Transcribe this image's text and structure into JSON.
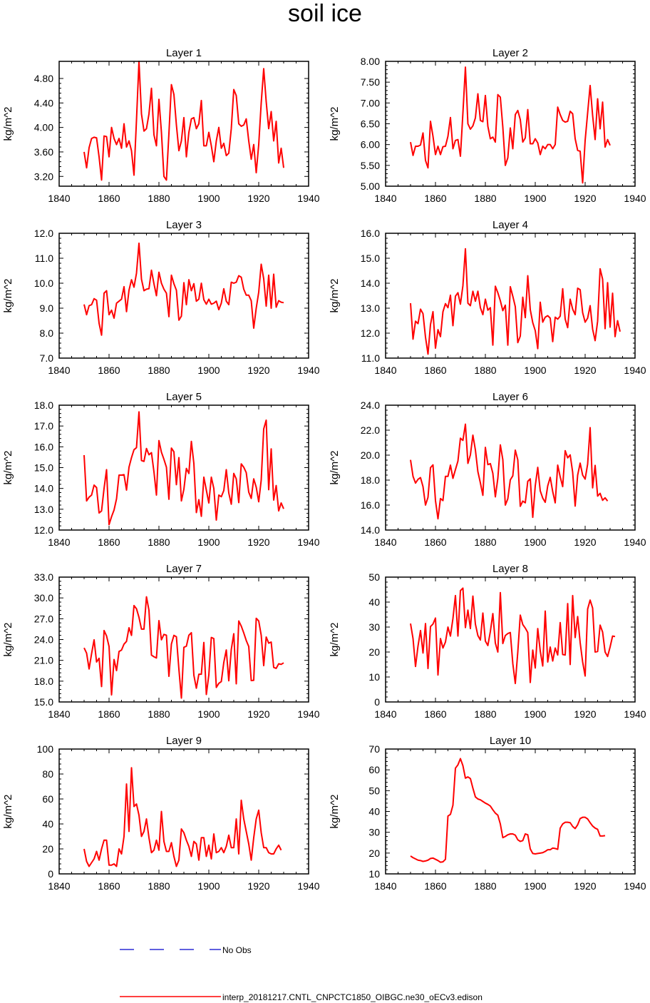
{
  "figure": {
    "title": "soil ice",
    "line_color": "#ff0000",
    "noobs_color": "#0000cc"
  },
  "legend": {
    "no_obs_label": "No Obs",
    "model_label": "interp_20181217.CNTL_CNPCTC1850_OIBGC.ne30_oECv3.edison"
  },
  "chart_data": [
    {
      "type": "line",
      "title": "Layer 1",
      "ylabel": "kg/m^2",
      "xlim": [
        1840,
        1940
      ],
      "xticks": [
        1840,
        1860,
        1880,
        1900,
        1920,
        1940
      ],
      "ylim": [
        3.04,
        5.08
      ],
      "yticks": [
        3.2,
        3.6,
        4.0,
        4.4,
        4.8
      ],
      "ytick_labels": [
        "3.20",
        "3.60",
        "4.00",
        "4.40",
        "4.80"
      ],
      "x_start": 1850,
      "values": [
        3.6,
        3.34,
        3.67,
        3.82,
        3.84,
        3.83,
        3.52,
        3.14,
        3.86,
        3.85,
        3.52,
        4.0,
        3.82,
        3.72,
        3.82,
        3.66,
        4.06,
        3.68,
        3.78,
        3.62,
        3.22,
        4.12,
        5.08,
        4.22,
        3.94,
        3.98,
        4.22,
        4.64,
        3.88,
        3.7,
        4.46,
        3.92,
        3.2,
        3.14,
        3.9,
        4.7,
        4.54,
        4.04,
        3.62,
        3.78,
        4.16,
        3.52,
        3.92,
        4.14,
        4.16,
        3.98,
        4.06,
        4.44,
        3.7,
        3.7,
        3.92,
        3.7,
        3.44,
        3.78,
        4.0,
        3.66,
        3.74,
        3.54,
        3.58,
        3.98,
        4.62,
        4.52,
        4.06,
        4.02,
        4.04,
        4.14,
        3.78,
        3.48,
        3.72,
        3.26,
        3.72,
        4.4,
        4.96,
        4.42,
        3.98,
        4.26,
        3.78,
        4.1,
        3.42,
        3.66,
        3.34
      ]
    },
    {
      "type": "line",
      "title": "Layer 2",
      "ylabel": "kg/m^2",
      "xlim": [
        1840,
        1940
      ],
      "xticks": [
        1840,
        1860,
        1880,
        1900,
        1920,
        1940
      ],
      "ylim": [
        5.0,
        8.0
      ],
      "yticks": [
        5.0,
        5.5,
        6.0,
        6.5,
        7.0,
        7.5,
        8.0
      ],
      "ytick_labels": [
        "5.00",
        "5.50",
        "6.00",
        "6.50",
        "7.00",
        "7.50",
        "8.00"
      ],
      "x_start": 1850,
      "values": [
        6.06,
        5.74,
        5.96,
        5.96,
        5.99,
        6.28,
        5.62,
        5.44,
        6.56,
        6.2,
        5.76,
        5.96,
        5.76,
        5.95,
        5.96,
        6.2,
        6.65,
        5.9,
        6.1,
        6.12,
        5.72,
        6.76,
        7.86,
        6.5,
        6.37,
        6.45,
        6.64,
        7.22,
        6.58,
        6.55,
        7.18,
        6.44,
        6.14,
        6.18,
        6.06,
        7.2,
        7.14,
        6.42,
        5.5,
        5.68,
        6.4,
        5.9,
        6.72,
        6.82,
        6.6,
        6.06,
        6.16,
        6.84,
        6.02,
        6.02,
        6.14,
        6.04,
        5.76,
        5.96,
        5.9,
        6.0,
        6.0,
        5.9,
        6.0,
        6.9,
        6.72,
        6.58,
        6.54,
        6.56,
        6.8,
        6.74,
        6.14,
        5.86,
        5.84,
        5.08,
        6.1,
        6.76,
        7.42,
        6.7,
        6.12,
        7.1,
        6.38,
        7.02,
        5.94,
        6.12,
        5.98
      ]
    },
    {
      "type": "line",
      "title": "Layer 3",
      "ylabel": "kg/m^2",
      "xlim": [
        1840,
        1940
      ],
      "xticks": [
        1840,
        1860,
        1880,
        1900,
        1920,
        1940
      ],
      "ylim": [
        7.0,
        12.0
      ],
      "yticks": [
        7,
        8,
        9,
        10,
        11,
        12
      ],
      "ytick_labels": [
        "7.0",
        "8.0",
        "9.0",
        "10.0",
        "11.0",
        "12.0"
      ],
      "x_start": 1850,
      "values": [
        9.15,
        8.74,
        9.1,
        9.14,
        9.38,
        9.32,
        8.4,
        7.92,
        9.6,
        9.7,
        8.74,
        8.92,
        8.6,
        9.2,
        9.28,
        9.36,
        9.86,
        8.86,
        9.72,
        10.14,
        9.84,
        10.4,
        11.6,
        10.16,
        9.7,
        9.76,
        9.78,
        10.52,
        9.98,
        9.5,
        10.44,
        10.0,
        9.76,
        9.6,
        8.66,
        10.32,
        9.98,
        9.72,
        8.52,
        8.68,
        10.02,
        9.14,
        10.14,
        9.7,
        9.98,
        9.28,
        9.36,
        10.0,
        9.34,
        9.16,
        9.36,
        9.16,
        9.2,
        9.28,
        8.94,
        9.2,
        9.78,
        9.28,
        9.14,
        10.04,
        10.0,
        10.04,
        10.3,
        10.24,
        9.76,
        9.52,
        9.52,
        9.3,
        8.2,
        9.0,
        9.64,
        10.76,
        10.18,
        9.08,
        10.32,
        9.0,
        10.36,
        9.04,
        9.3,
        9.24,
        9.22
      ]
    },
    {
      "type": "line",
      "title": "Layer 4",
      "ylabel": "kg/m^2",
      "xlim": [
        1840,
        1940
      ],
      "xticks": [
        1840,
        1860,
        1880,
        1900,
        1920,
        1940
      ],
      "ylim": [
        11.0,
        16.0
      ],
      "yticks": [
        11,
        12,
        13,
        14,
        15,
        16
      ],
      "ytick_labels": [
        "11.0",
        "12.0",
        "13.0",
        "14.0",
        "15.0",
        "16.0"
      ],
      "x_start": 1850,
      "values": [
        13.2,
        11.76,
        12.48,
        12.38,
        12.96,
        12.78,
        11.84,
        11.16,
        12.34,
        12.86,
        11.4,
        12.14,
        11.86,
        12.86,
        13.18,
        13.02,
        13.52,
        12.3,
        13.48,
        13.62,
        13.16,
        13.9,
        15.38,
        13.2,
        13.1,
        13.68,
        13.28,
        13.68,
        13.02,
        12.74,
        13.36,
        12.92,
        13.02,
        11.52,
        13.88,
        13.62,
        13.3,
        12.9,
        13.12,
        11.52,
        13.86,
        13.48,
        13.06,
        11.62,
        11.88,
        13.44,
        12.62,
        14.3,
        12.94,
        12.42,
        12.1,
        11.38,
        13.24,
        12.44,
        12.64,
        12.7,
        12.6,
        11.66,
        12.64,
        12.56,
        12.68,
        13.78,
        12.56,
        12.22,
        13.36,
        12.96,
        12.74,
        13.8,
        13.74,
        12.82,
        12.44,
        12.6,
        13.1,
        12.16,
        11.7,
        12.48,
        14.58,
        14.16,
        12.18,
        14.02,
        12.24,
        13.6,
        11.86,
        12.5,
        12.06
      ]
    },
    {
      "type": "line",
      "title": "Layer 5",
      "ylabel": "kg/m^2",
      "xlim": [
        1840,
        1940
      ],
      "xticks": [
        1840,
        1860,
        1880,
        1900,
        1920,
        1940
      ],
      "ylim": [
        12.0,
        18.0
      ],
      "yticks": [
        12,
        13,
        14,
        15,
        16,
        17,
        18
      ],
      "ytick_labels": [
        "12.0",
        "13.0",
        "14.0",
        "15.0",
        "16.0",
        "17.0",
        "18.0"
      ],
      "x_start": 1850,
      "values": [
        15.6,
        13.4,
        13.58,
        13.68,
        14.16,
        14.04,
        12.82,
        12.92,
        14.0,
        14.9,
        12.26,
        12.64,
        12.96,
        13.5,
        14.64,
        14.64,
        14.66,
        13.92,
        15.02,
        15.48,
        15.86,
        15.96,
        17.68,
        15.34,
        15.3,
        15.92,
        15.62,
        15.72,
        14.8,
        13.68,
        16.3,
        15.74,
        15.4,
        15.02,
        13.48,
        15.94,
        15.76,
        14.18,
        15.48,
        13.4,
        13.96,
        14.96,
        14.72,
        16.26,
        15.2,
        12.84,
        13.46,
        12.66,
        14.54,
        13.92,
        13.3,
        14.54,
        14.0,
        12.48,
        13.68,
        13.6,
        13.9,
        14.9,
        13.78,
        13.24,
        14.72,
        14.46,
        13.32,
        15.18,
        15.02,
        14.76,
        13.82,
        13.52,
        14.46,
        14.06,
        13.36,
        14.4,
        16.86,
        17.28,
        13.94,
        15.9,
        13.44,
        14.14,
        12.92,
        13.3,
        13.02
      ]
    },
    {
      "type": "line",
      "title": "Layer 6",
      "ylabel": "kg/m^2",
      "xlim": [
        1840,
        1940
      ],
      "xticks": [
        1840,
        1860,
        1880,
        1900,
        1920,
        1940
      ],
      "ylim": [
        14.0,
        24.0
      ],
      "yticks": [
        14,
        16,
        18,
        20,
        22,
        24
      ],
      "ytick_labels": [
        "14.0",
        "16.0",
        "18.0",
        "20.0",
        "22.0",
        "24.0"
      ],
      "x_start": 1850,
      "values": [
        19.62,
        18.3,
        17.76,
        18.06,
        18.2,
        17.48,
        16.0,
        16.62,
        19.0,
        19.22,
        16.36,
        14.9,
        16.52,
        16.36,
        18.3,
        18.3,
        19.2,
        18.14,
        18.84,
        19.52,
        21.36,
        21.18,
        22.48,
        19.34,
        20.02,
        21.6,
        20.42,
        18.68,
        17.78,
        16.78,
        20.62,
        19.24,
        19.32,
        18.54,
        16.66,
        18.14,
        20.82,
        19.64,
        16.0,
        16.5,
        18.02,
        18.34,
        20.4,
        19.62,
        15.9,
        16.32,
        16.18,
        17.9,
        18.1,
        15.02,
        17.54,
        19.02,
        17.14,
        16.56,
        16.22,
        17.54,
        18.22,
        17.08,
        16.18,
        19.2,
        18.26,
        17.48,
        20.36,
        19.78,
        20.02,
        18.62,
        15.92,
        18.4,
        19.36,
        18.4,
        18.08,
        19.28,
        22.2,
        17.38,
        19.18,
        16.72,
        16.94,
        16.38,
        16.58,
        16.32
      ]
    },
    {
      "type": "line",
      "title": "Layer 7",
      "ylabel": "kg/m^2",
      "xlim": [
        1840,
        1940
      ],
      "xticks": [
        1840,
        1860,
        1880,
        1900,
        1920,
        1940
      ],
      "ylim": [
        15.0,
        33.0
      ],
      "yticks": [
        15,
        18,
        21,
        24,
        27,
        30,
        33
      ],
      "ytick_labels": [
        "15.0",
        "18.0",
        "21.0",
        "24.0",
        "27.0",
        "30.0",
        "33.0"
      ],
      "x_start": 1850,
      "values": [
        22.8,
        22.04,
        19.76,
        21.96,
        23.96,
        20.76,
        21.3,
        17.22,
        25.3,
        24.52,
        23.0,
        16.02,
        21.12,
        19.52,
        22.28,
        22.48,
        23.34,
        23.74,
        25.7,
        24.6,
        28.9,
        28.44,
        27.2,
        25.5,
        25.5,
        30.16,
        28.22,
        21.76,
        21.52,
        21.34,
        26.72,
        23.96,
        24.74,
        24.62,
        18.7,
        23.36,
        24.6,
        24.4,
        19.74,
        15.56,
        22.88,
        23.04,
        24.62,
        24.98,
        18.86,
        16.98,
        19.0,
        19.0,
        23.58,
        16.08,
        18.88,
        24.3,
        24.14,
        17.1,
        17.68,
        17.94,
        20.7,
        22.5,
        18.06,
        22.56,
        24.84,
        17.62,
        26.68,
        25.94,
        24.96,
        23.86,
        23.0,
        18.08,
        18.12,
        27.06,
        26.68,
        24.62,
        20.24,
        24.36,
        23.48,
        23.64,
        19.98,
        19.84,
        20.5,
        20.42,
        20.64
      ]
    },
    {
      "type": "line",
      "title": "Layer 8",
      "ylabel": "kg/m^2",
      "xlim": [
        1840,
        1940
      ],
      "xticks": [
        1840,
        1860,
        1880,
        1900,
        1920,
        1940
      ],
      "ylim": [
        0,
        50
      ],
      "yticks": [
        0,
        10,
        20,
        30,
        40,
        50
      ],
      "ytick_labels": [
        "0",
        "10",
        "20",
        "30",
        "40",
        "50"
      ],
      "x_start": 1850,
      "values": [
        31.4,
        25.4,
        14.2,
        22.4,
        28.6,
        19.6,
        31.4,
        13.4,
        30.2,
        31.2,
        33.6,
        10.8,
        25.4,
        21.6,
        24.0,
        30.0,
        26.4,
        33.4,
        42.6,
        26.4,
        44.6,
        45.6,
        29.8,
        36.8,
        29.4,
        42.4,
        31.2,
        26.6,
        24.8,
        35.6,
        24.4,
        22.6,
        28.2,
        35.4,
        23.6,
        20.0,
        43.8,
        23.4,
        26.6,
        27.4,
        27.8,
        15.4,
        7.4,
        20.0,
        34.8,
        31.0,
        29.6,
        27.8,
        7.8,
        20.8,
        13.6,
        29.4,
        20.4,
        14.4,
        36.4,
        16.0,
        22.0,
        16.4,
        21.6,
        18.8,
        31.8,
        19.0,
        18.8,
        39.4,
        15.0,
        42.6,
        25.8,
        34.2,
        23.8,
        16.0,
        10.4,
        37.2,
        40.8,
        37.6,
        20.0,
        20.2,
        30.8,
        28.0,
        20.0,
        18.2,
        22.0,
        26.4,
        26.2
      ]
    },
    {
      "type": "line",
      "title": "Layer 9",
      "ylabel": "kg/m^2",
      "xlim": [
        1840,
        1940
      ],
      "xticks": [
        1840,
        1860,
        1880,
        1900,
        1920,
        1940
      ],
      "ylim": [
        0,
        100
      ],
      "yticks": [
        0,
        20,
        40,
        60,
        80,
        100
      ],
      "ytick_labels": [
        "0",
        "20",
        "40",
        "60",
        "80",
        "100"
      ],
      "x_start": 1850,
      "values": [
        20,
        10,
        6,
        9,
        12,
        18,
        11,
        20,
        27,
        27,
        7,
        7,
        8,
        6,
        20,
        16,
        30,
        72,
        34,
        85,
        54,
        56,
        47,
        30,
        34,
        44,
        29,
        17,
        19,
        27,
        19,
        50,
        26,
        18,
        18,
        25,
        14,
        6,
        11,
        36,
        33,
        27,
        22,
        14,
        26,
        24,
        11,
        29,
        29,
        14,
        23,
        12,
        32,
        17,
        18,
        21,
        17,
        22,
        31,
        21,
        21,
        44,
        16,
        59,
        44,
        34,
        24,
        11,
        29,
        44,
        51,
        33,
        21,
        21,
        17,
        16,
        16,
        20,
        23,
        19
      ]
    },
    {
      "type": "line",
      "title": "Layer 10",
      "ylabel": "kg/m^2",
      "xlim": [
        1840,
        1940
      ],
      "xticks": [
        1840,
        1860,
        1880,
        1900,
        1920,
        1940
      ],
      "ylim": [
        10,
        70
      ],
      "yticks": [
        10,
        20,
        30,
        40,
        50,
        60,
        70
      ],
      "ytick_labels": [
        "10",
        "20",
        "30",
        "40",
        "50",
        "60",
        "70"
      ],
      "x_start": 1850,
      "values": [
        18.6,
        17.8,
        17.2,
        16.6,
        16.4,
        16.0,
        16.2,
        16.6,
        17.4,
        17.6,
        17.0,
        16.4,
        15.6,
        15.8,
        17.0,
        37.8,
        38.6,
        43.0,
        60.8,
        62.4,
        65.4,
        62.0,
        56.0,
        56.6,
        55.8,
        51.2,
        47.0,
        46.0,
        45.6,
        44.8,
        44.0,
        43.4,
        42.6,
        40.8,
        39.2,
        38.2,
        34.0,
        27.4,
        28.0,
        28.8,
        29.2,
        29.2,
        28.6,
        26.4,
        25.6,
        26.0,
        29.2,
        28.8,
        22.0,
        19.8,
        19.6,
        19.8,
        20.0,
        20.2,
        20.8,
        21.6,
        21.6,
        22.4,
        22.2,
        21.8,
        32.0,
        34.0,
        34.8,
        34.8,
        34.6,
        32.8,
        31.8,
        33.6,
        36.6,
        37.2,
        37.2,
        36.4,
        34.6,
        33.0,
        32.0,
        31.4,
        28.2,
        28.2,
        28.4
      ]
    }
  ]
}
